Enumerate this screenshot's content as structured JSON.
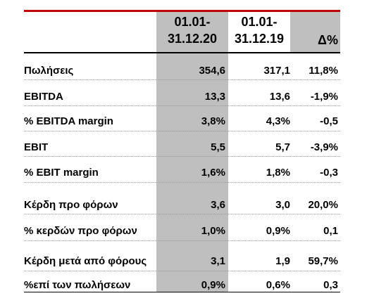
{
  "table": {
    "headers": {
      "col_a": [
        "01.01-",
        "31.12.20"
      ],
      "col_b": [
        "01.01-",
        "31.12.19"
      ],
      "delta": "Δ%"
    },
    "rows": [
      {
        "label": "Πωλήσεις",
        "a": "354,6",
        "b": "317,1",
        "delta": "11,8%"
      },
      {
        "label": "EBITDA",
        "a": "13,3",
        "b": "13,6",
        "delta": "-1,9%"
      },
      {
        "label": "% EBITDA margin",
        "a": "3,8%",
        "b": "4,3%",
        "delta": "-0,5"
      },
      {
        "label": "EBIT",
        "a": "5,5",
        "b": "5,7",
        "delta": "-3,9%"
      },
      {
        "label": "% EBIT margin",
        "a": "1,6%",
        "b": "1,8%",
        "delta": "-0,3"
      },
      {
        "label": "Κέρδη προ φόρων",
        "a": "3,6",
        "b": "3,0",
        "delta": "20,0%"
      },
      {
        "label": "% κερδών προ φόρων",
        "a": "1,0%",
        "b": "0,9%",
        "delta": "0,1"
      },
      {
        "label": "Κέρδη μετά από φόρους",
        "a": "3,1",
        "b": "1,9",
        "delta": "59,7%"
      },
      {
        "label": "%επί των πωλήσεων",
        "a": "0,9%",
        "b": "0,6%",
        "delta": "0,3"
      }
    ]
  },
  "colors": {
    "accent_rule": "#c00000",
    "shaded_column": "#bfbfbf"
  }
}
